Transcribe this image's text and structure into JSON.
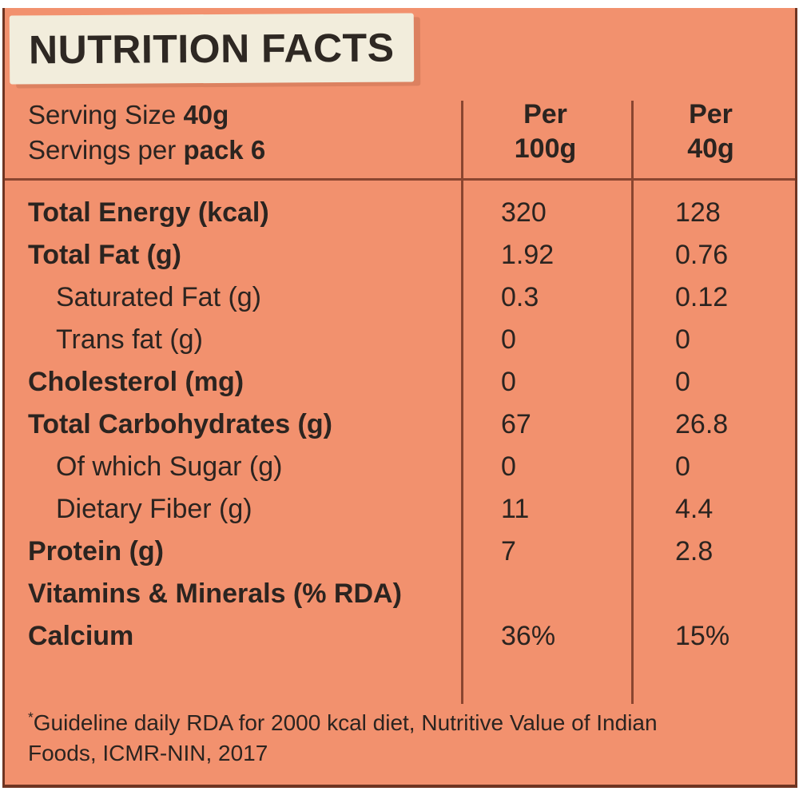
{
  "title": "NUTRITION FACTS",
  "serving": {
    "line1_regular": "Serving Size ",
    "line1_bold": "40g",
    "line2_regular": "Servings per ",
    "line2_bold": "pack 6"
  },
  "columns": [
    {
      "line1": "Per",
      "line2": "100g"
    },
    {
      "line1": "Per",
      "line2": "40g"
    }
  ],
  "rows": [
    {
      "label": "Total Energy (kcal)",
      "bold": true,
      "indent": false,
      "per100": "320",
      "per40": "128"
    },
    {
      "label": "Total Fat (g)",
      "bold": true,
      "indent": false,
      "per100": "1.92",
      "per40": "0.76"
    },
    {
      "label": "Saturated Fat (g)",
      "bold": false,
      "indent": true,
      "per100": "0.3",
      "per40": "0.12"
    },
    {
      "label": "Trans fat (g)",
      "bold": false,
      "indent": true,
      "per100": "0",
      "per40": "0"
    },
    {
      "label": "Cholesterol (mg)",
      "bold": true,
      "indent": false,
      "per100": "0",
      "per40": "0"
    },
    {
      "label": "Total Carbohydrates (g)",
      "bold": true,
      "indent": false,
      "per100": "67",
      "per40": "26.8"
    },
    {
      "label": "Of which Sugar (g)",
      "bold": false,
      "indent": true,
      "per100": "0",
      "per40": "0"
    },
    {
      "label": "Dietary Fiber (g)",
      "bold": false,
      "indent": true,
      "per100": "11",
      "per40": "4.4"
    },
    {
      "label": "Protein (g)",
      "bold": true,
      "indent": false,
      "per100": "7",
      "per40": "2.8"
    },
    {
      "label": "Vitamins & Minerals (% RDA)",
      "bold": true,
      "indent": false,
      "per100": "",
      "per40": ""
    },
    {
      "label": "Calcium",
      "bold": true,
      "indent": false,
      "per100": "36%",
      "per40": "15%"
    }
  ],
  "footnote": {
    "asterisk": "*",
    "line1": "Guideline daily RDA for 2000 kcal diet, Nutritive Value of Indian",
    "line2": "Foods, ICMR-NIN, 2017"
  },
  "colors": {
    "background_salmon": "#F2916E",
    "banner_cream": "#F2EDDC",
    "grid_line_brown": "#8A4630",
    "outer_border_brown": "#6F3522",
    "banner_shadow": "#DC8160",
    "text_dark": "#2B2420"
  }
}
